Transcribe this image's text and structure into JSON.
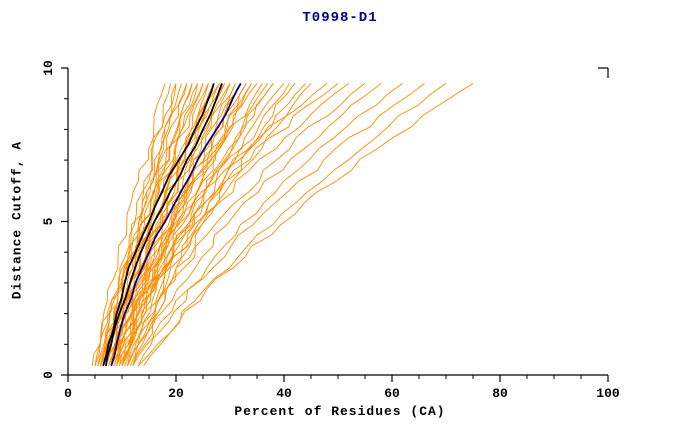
{
  "chart_data": {
    "type": "line",
    "title": "T0998-D1",
    "xlabel": "Percent of Residues (CA)",
    "ylabel": "Distance Cutoff, A",
    "xlim": [
      0,
      100
    ],
    "ylim": [
      0,
      10
    ],
    "x_major_ticks": [
      0,
      20,
      40,
      60,
      80,
      100
    ],
    "x_minor_step": 5,
    "y_major_ticks": [
      0,
      5,
      10
    ],
    "y_minor_step": 1,
    "grid": false,
    "legend": "none",
    "colors": {
      "ensemble": "#ff8c00",
      "highlight_black": "#000000",
      "highlight_navy": "#00008b",
      "title": "#00008b",
      "axis": "#000000"
    },
    "ensemble": {
      "name": "prediction-gdt-curves",
      "color": "#ff8c00",
      "y_anchors": [
        0.3,
        5,
        9.5
      ],
      "curves_x": [
        [
          4.5,
          11,
          18
        ],
        [
          5,
          12,
          20
        ],
        [
          5,
          13,
          22
        ],
        [
          5.5,
          12.5,
          19
        ],
        [
          6,
          13,
          21
        ],
        [
          6,
          14,
          24
        ],
        [
          6,
          15,
          26
        ],
        [
          6.5,
          13.5,
          20
        ],
        [
          7,
          14,
          22
        ],
        [
          7,
          15,
          25
        ],
        [
          7,
          16,
          28
        ],
        [
          7,
          17,
          30
        ],
        [
          7.5,
          15,
          23
        ],
        [
          8,
          16,
          24
        ],
        [
          8,
          17,
          27
        ],
        [
          8,
          18,
          30
        ],
        [
          8,
          19,
          33
        ],
        [
          8.5,
          17,
          26
        ],
        [
          9,
          18,
          28
        ],
        [
          9,
          19,
          31
        ],
        [
          9,
          20,
          35
        ],
        [
          9.5,
          19,
          29
        ],
        [
          10,
          20,
          32
        ],
        [
          10,
          21,
          36
        ],
        [
          10,
          23,
          40
        ],
        [
          10.5,
          21,
          33
        ],
        [
          11,
          22,
          38
        ],
        [
          11,
          24,
          42
        ],
        [
          11.5,
          23,
          37
        ],
        [
          12,
          25,
          44
        ],
        [
          6,
          16,
          29
        ],
        [
          7,
          18,
          32
        ],
        [
          8,
          20,
          34
        ],
        [
          9,
          22,
          38
        ],
        [
          10,
          24,
          41
        ],
        [
          11,
          26,
          45
        ],
        [
          8,
          21,
          48
        ],
        [
          9,
          23,
          50
        ],
        [
          10,
          25,
          52
        ],
        [
          11,
          28,
          55
        ],
        [
          12,
          30,
          58
        ],
        [
          13,
          33,
          62
        ],
        [
          12,
          35,
          66
        ],
        [
          14,
          38,
          70
        ],
        [
          13,
          40,
          75
        ],
        [
          6.5,
          14.5,
          23
        ],
        [
          5.5,
          14,
          25
        ],
        [
          7.5,
          16.5,
          27
        ],
        [
          9.5,
          21,
          34
        ],
        [
          8.5,
          19.5,
          31
        ]
      ]
    },
    "highlights": [
      {
        "name": "model-black-1",
        "color": "#000000",
        "y": [
          0.3,
          1,
          2,
          3,
          4,
          5,
          6,
          7,
          8,
          9,
          9.5
        ],
        "x": [
          6.5,
          7.5,
          9,
          10.5,
          12.5,
          15,
          17.5,
          20.5,
          23.5,
          26,
          27
        ]
      },
      {
        "name": "model-black-2",
        "color": "#000000",
        "y": [
          0.3,
          1,
          2,
          3,
          4,
          5,
          6,
          7,
          8,
          9,
          9.5
        ],
        "x": [
          7,
          8,
          9.5,
          11.5,
          13.5,
          16,
          19,
          22,
          25,
          27.5,
          28.5
        ]
      },
      {
        "name": "model-navy",
        "color": "#00008b",
        "y": [
          0.3,
          1,
          2,
          3,
          4,
          5,
          6,
          7,
          8,
          9,
          9.5
        ],
        "x": [
          8,
          9,
          10.5,
          12.5,
          15,
          18,
          21,
          24,
          27.5,
          30.5,
          32
        ]
      }
    ]
  }
}
